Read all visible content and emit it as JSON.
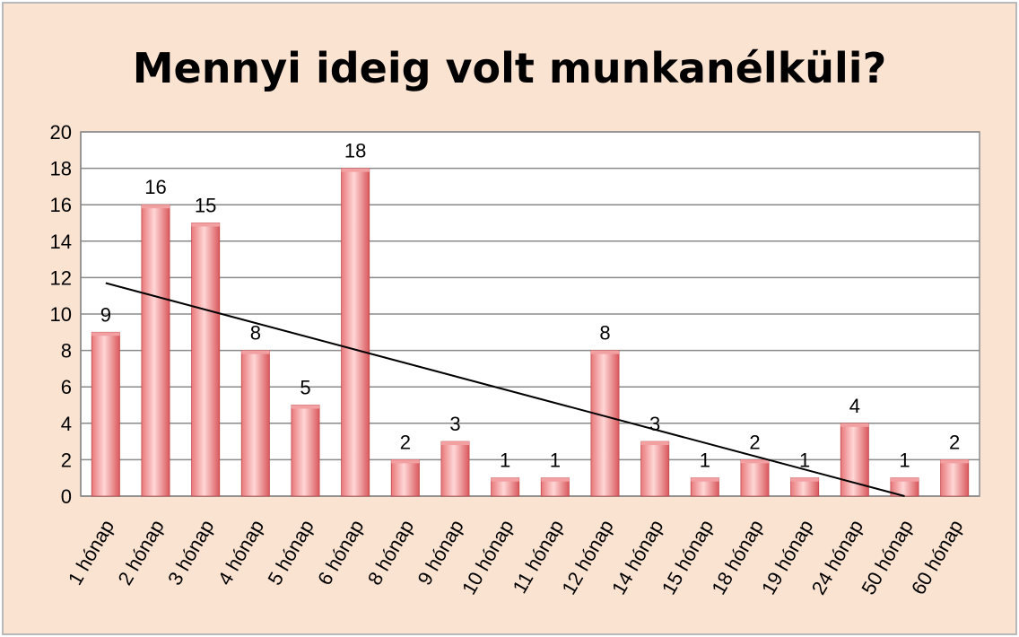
{
  "chart_data": {
    "type": "bar",
    "title": "Mennyi ideig volt munkanélküli?",
    "xlabel": "",
    "ylabel": "",
    "categories": [
      "1 hónap",
      "2 hónap",
      "3 hónap",
      "4 hónap",
      "5 hónap",
      "6 hónap",
      "8 hónap",
      "9 hónap",
      "10 hónap",
      "11 hónap",
      "12 hónap",
      "14 hónap",
      "15 hónap",
      "18 hónap",
      "19 hónap",
      "24 hónap",
      "50 hónap",
      "60 hónap"
    ],
    "values": [
      9,
      16,
      15,
      8,
      5,
      18,
      2,
      3,
      1,
      1,
      8,
      3,
      1,
      2,
      1,
      4,
      1,
      2
    ],
    "ylim": [
      0,
      20
    ],
    "yticks": [
      0,
      2,
      4,
      6,
      8,
      10,
      12,
      14,
      16,
      18,
      20
    ],
    "grid": true,
    "data_labels": true,
    "trendline": {
      "type": "linear",
      "start_value": 11.7,
      "end_value": 0
    },
    "colors": {
      "bar": "#e8787a",
      "bar_light": "#ffd6d6",
      "background": "#fbe3d2",
      "plot_background": "#ffffff",
      "trendline": "#000000"
    }
  }
}
